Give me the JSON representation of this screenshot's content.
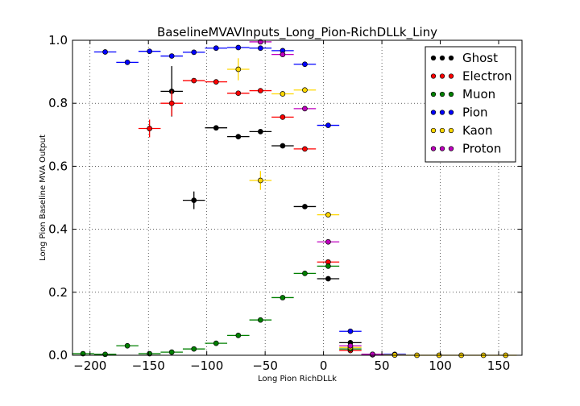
{
  "chart_data": {
    "type": "scatter",
    "title": "BaselineMVAVInputs_Long_Pion-RichDLLk_Liny",
    "xlabel": "Long Pion RichDLLk",
    "ylabel": "Long Pion Baseline MVA Output",
    "xlim": [
      -215,
      170
    ],
    "ylim": [
      0.0,
      1.0
    ],
    "xticks": [
      "−200",
      "−150",
      "−100",
      "−50",
      "0",
      "50",
      "100",
      "150"
    ],
    "yticks": [
      "0.0",
      "0.2",
      "0.4",
      "0.6",
      "0.8",
      "1.0"
    ],
    "grid": true,
    "legend_position": "top-right",
    "x_bin_halfwidth": 9.5,
    "series": [
      {
        "name": "Ghost",
        "color": "#000000",
        "points": [
          {
            "x": -130,
            "y": 0.838,
            "yerr": 0.08
          },
          {
            "x": -111,
            "y": 0.492,
            "yerr": 0.028
          },
          {
            "x": -92,
            "y": 0.722,
            "yerr": 0.008
          },
          {
            "x": -73,
            "y": 0.694,
            "yerr": 0.008
          },
          {
            "x": -54,
            "y": 0.71,
            "yerr": 0.008
          },
          {
            "x": -35,
            "y": 0.665,
            "yerr": 0.006
          },
          {
            "x": -16,
            "y": 0.472,
            "yerr": 0.006
          },
          {
            "x": 4,
            "y": 0.243,
            "yerr": 0.005
          },
          {
            "x": 23,
            "y": 0.04,
            "yerr": 0.003
          },
          {
            "x": 42,
            "y": 0.003,
            "yerr": 0.002
          },
          {
            "x": 61,
            "y": 0.001,
            "yerr": 0.001
          }
        ]
      },
      {
        "name": "Electron",
        "color": "#ff0000",
        "points": [
          {
            "x": -149,
            "y": 0.72,
            "yerr": 0.028
          },
          {
            "x": -130,
            "y": 0.8,
            "yerr": 0.04
          },
          {
            "x": -111,
            "y": 0.872,
            "yerr": 0.008
          },
          {
            "x": -92,
            "y": 0.868,
            "yerr": 0.006
          },
          {
            "x": -73,
            "y": 0.832,
            "yerr": 0.006
          },
          {
            "x": -54,
            "y": 0.84,
            "yerr": 0.005
          },
          {
            "x": -35,
            "y": 0.756,
            "yerr": 0.006
          },
          {
            "x": -16,
            "y": 0.655,
            "yerr": 0.006
          },
          {
            "x": 4,
            "y": 0.296,
            "yerr": 0.006
          },
          {
            "x": 23,
            "y": 0.015,
            "yerr": 0.003
          },
          {
            "x": 42,
            "y": 0.002,
            "yerr": 0.001
          }
        ]
      },
      {
        "name": "Muon",
        "color": "#008000",
        "points": [
          {
            "x": -206,
            "y": 0.005,
            "yerr": 0.002
          },
          {
            "x": -187,
            "y": 0.003,
            "yerr": 0.002
          },
          {
            "x": -168,
            "y": 0.03,
            "yerr": 0.005
          },
          {
            "x": -149,
            "y": 0.005,
            "yerr": 0.002
          },
          {
            "x": -130,
            "y": 0.01,
            "yerr": 0.003
          },
          {
            "x": -111,
            "y": 0.02,
            "yerr": 0.004
          },
          {
            "x": -92,
            "y": 0.038,
            "yerr": 0.004
          },
          {
            "x": -73,
            "y": 0.063,
            "yerr": 0.004
          },
          {
            "x": -54,
            "y": 0.112,
            "yerr": 0.005
          },
          {
            "x": -35,
            "y": 0.183,
            "yerr": 0.005
          },
          {
            "x": -16,
            "y": 0.26,
            "yerr": 0.006
          },
          {
            "x": 4,
            "y": 0.283,
            "yerr": 0.006
          },
          {
            "x": 23,
            "y": 0.02,
            "yerr": 0.003
          },
          {
            "x": 42,
            "y": 0.002,
            "yerr": 0.001
          }
        ]
      },
      {
        "name": "Pion",
        "color": "#0000ff",
        "points": [
          {
            "x": -187,
            "y": 0.963,
            "yerr": 0.003
          },
          {
            "x": -168,
            "y": 0.93,
            "yerr": 0.004
          },
          {
            "x": -149,
            "y": 0.965,
            "yerr": 0.003
          },
          {
            "x": -130,
            "y": 0.95,
            "yerr": 0.003
          },
          {
            "x": -111,
            "y": 0.962,
            "yerr": 0.003
          },
          {
            "x": -92,
            "y": 0.975,
            "yerr": 0.002
          },
          {
            "x": -73,
            "y": 0.977,
            "yerr": 0.002
          },
          {
            "x": -54,
            "y": 0.975,
            "yerr": 0.002
          },
          {
            "x": -35,
            "y": 0.967,
            "yerr": 0.002
          },
          {
            "x": -16,
            "y": 0.924,
            "yerr": 0.003
          },
          {
            "x": 4,
            "y": 0.73,
            "yerr": 0.004
          },
          {
            "x": 23,
            "y": 0.076,
            "yerr": 0.003
          },
          {
            "x": 42,
            "y": 0.002,
            "yerr": 0.001
          },
          {
            "x": 61,
            "y": 0.003,
            "yerr": 0.001
          }
        ]
      },
      {
        "name": "Kaon",
        "color": "#ffd700",
        "points": [
          {
            "x": -73,
            "y": 0.908,
            "yerr": 0.035
          },
          {
            "x": -54,
            "y": 0.555,
            "yerr": 0.03
          },
          {
            "x": -35,
            "y": 0.83,
            "yerr": 0.008
          },
          {
            "x": -16,
            "y": 0.842,
            "yerr": 0.006
          },
          {
            "x": 4,
            "y": 0.446,
            "yerr": 0.006
          },
          {
            "x": 23,
            "y": 0.025,
            "yerr": 0.003
          },
          {
            "x": 42,
            "y": 0.002,
            "yerr": 0.001
          },
          {
            "x": 61,
            "y": 0.001,
            "yerr": 0.001
          },
          {
            "x": 80,
            "y": 0.0,
            "yerr": 0.0
          },
          {
            "x": 99,
            "y": 0.0,
            "yerr": 0.0
          },
          {
            "x": 118,
            "y": 0.0,
            "yerr": 0.0
          },
          {
            "x": 137,
            "y": 0.0,
            "yerr": 0.0
          },
          {
            "x": 156,
            "y": 0.0,
            "yerr": 0.0
          }
        ]
      },
      {
        "name": "Proton",
        "color": "#bf00bf",
        "points": [
          {
            "x": -54,
            "y": 0.995,
            "yerr": 0.005
          },
          {
            "x": -35,
            "y": 0.955,
            "yerr": 0.004
          },
          {
            "x": -16,
            "y": 0.783,
            "yerr": 0.006
          },
          {
            "x": 4,
            "y": 0.36,
            "yerr": 0.006
          },
          {
            "x": 23,
            "y": 0.03,
            "yerr": 0.003
          },
          {
            "x": 42,
            "y": 0.003,
            "yerr": 0.001
          }
        ]
      }
    ]
  }
}
